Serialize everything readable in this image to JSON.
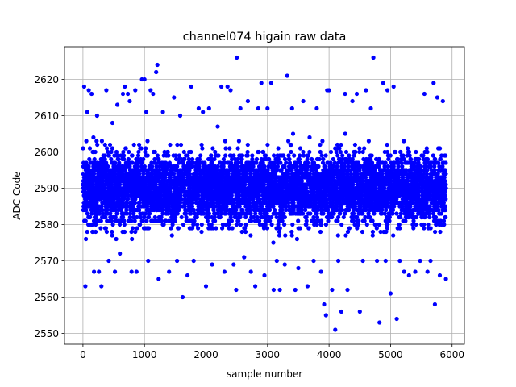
{
  "chart_data": {
    "type": "scatter",
    "title": "channel074 higain raw data",
    "xlabel": "sample number",
    "ylabel": "ADC Code",
    "xlim": [
      -300,
      6200
    ],
    "ylim": [
      2547,
      2629
    ],
    "x_ticks": [
      0,
      1000,
      2000,
      3000,
      4000,
      5000,
      6000
    ],
    "y_ticks": [
      2550,
      2560,
      2570,
      2580,
      2590,
      2600,
      2610,
      2620
    ],
    "grid": true,
    "marker_color": "#0000ff",
    "n_samples": 5900,
    "series": [
      {
        "name": "",
        "color": "#0000ff",
        "band": {
          "x_range": [
            0,
            5900
          ],
          "y_core": [
            2576,
            2604
          ],
          "y_typical": [
            2570,
            2610
          ]
        },
        "points": [
          [
            20,
            2618
          ],
          [
            40,
            2563
          ],
          [
            70,
            2611
          ],
          [
            95,
            2617
          ],
          [
            140,
            2616
          ],
          [
            180,
            2567
          ],
          [
            230,
            2610
          ],
          [
            260,
            2567
          ],
          [
            300,
            2563
          ],
          [
            380,
            2617
          ],
          [
            420,
            2570
          ],
          [
            480,
            2608
          ],
          [
            520,
            2567
          ],
          [
            560,
            2613
          ],
          [
            600,
            2572
          ],
          [
            650,
            2616
          ],
          [
            680,
            2618
          ],
          [
            730,
            2616
          ],
          [
            760,
            2614
          ],
          [
            790,
            2567
          ],
          [
            850,
            2617
          ],
          [
            870,
            2567
          ],
          [
            960,
            2620
          ],
          [
            1000,
            2620
          ],
          [
            1030,
            2611
          ],
          [
            1060,
            2570
          ],
          [
            1100,
            2617
          ],
          [
            1140,
            2616
          ],
          [
            1190,
            2622
          ],
          [
            1210,
            2624
          ],
          [
            1230,
            2565
          ],
          [
            1300,
            2611
          ],
          [
            1400,
            2567
          ],
          [
            1480,
            2615
          ],
          [
            1530,
            2570
          ],
          [
            1580,
            2610
          ],
          [
            1620,
            2560
          ],
          [
            1700,
            2566
          ],
          [
            1760,
            2618
          ],
          [
            1800,
            2570
          ],
          [
            1880,
            2612
          ],
          [
            1950,
            2611
          ],
          [
            2000,
            2563
          ],
          [
            2050,
            2612
          ],
          [
            2100,
            2569
          ],
          [
            2190,
            2607
          ],
          [
            2250,
            2618
          ],
          [
            2300,
            2567
          ],
          [
            2350,
            2618
          ],
          [
            2400,
            2617
          ],
          [
            2450,
            2569
          ],
          [
            2490,
            2562
          ],
          [
            2500,
            2626
          ],
          [
            2560,
            2612
          ],
          [
            2620,
            2571
          ],
          [
            2680,
            2614
          ],
          [
            2730,
            2567
          ],
          [
            2800,
            2563
          ],
          [
            2850,
            2612
          ],
          [
            2900,
            2619
          ],
          [
            2950,
            2566
          ],
          [
            3000,
            2612
          ],
          [
            3060,
            2619
          ],
          [
            3100,
            2562
          ],
          [
            3150,
            2570
          ],
          [
            3200,
            2562
          ],
          [
            3280,
            2569
          ],
          [
            3320,
            2621
          ],
          [
            3400,
            2612
          ],
          [
            3450,
            2562
          ],
          [
            3500,
            2568
          ],
          [
            3580,
            2614
          ],
          [
            3650,
            2563
          ],
          [
            3750,
            2570
          ],
          [
            3800,
            2612
          ],
          [
            3870,
            2567
          ],
          [
            3920,
            2558
          ],
          [
            3950,
            2555
          ],
          [
            3970,
            2617
          ],
          [
            4000,
            2617
          ],
          [
            4050,
            2562
          ],
          [
            4100,
            2551
          ],
          [
            4150,
            2570
          ],
          [
            4200,
            2556
          ],
          [
            4260,
            2616
          ],
          [
            4300,
            2562
          ],
          [
            4380,
            2614
          ],
          [
            4450,
            2616
          ],
          [
            4500,
            2556
          ],
          [
            4550,
            2570
          ],
          [
            4600,
            2617
          ],
          [
            4680,
            2612
          ],
          [
            4720,
            2626
          ],
          [
            4780,
            2570
          ],
          [
            4820,
            2553
          ],
          [
            4880,
            2619
          ],
          [
            4920,
            2570
          ],
          [
            4950,
            2617
          ],
          [
            5000,
            2561
          ],
          [
            5050,
            2618
          ],
          [
            5100,
            2554
          ],
          [
            5150,
            2570
          ],
          [
            5220,
            2567
          ],
          [
            5300,
            2566
          ],
          [
            5400,
            2567
          ],
          [
            5480,
            2570
          ],
          [
            5550,
            2616
          ],
          [
            5600,
            2567
          ],
          [
            5650,
            2570
          ],
          [
            5700,
            2619
          ],
          [
            5720,
            2558
          ],
          [
            5760,
            2615
          ],
          [
            5800,
            2566
          ],
          [
            5850,
            2614
          ],
          [
            5900,
            2565
          ],
          [
            500,
            2597
          ],
          [
            1500,
            2584
          ],
          [
            2500,
            2591
          ],
          [
            3500,
            2588
          ],
          [
            4500,
            2593
          ],
          [
            5500,
            2586
          ]
        ]
      }
    ]
  }
}
